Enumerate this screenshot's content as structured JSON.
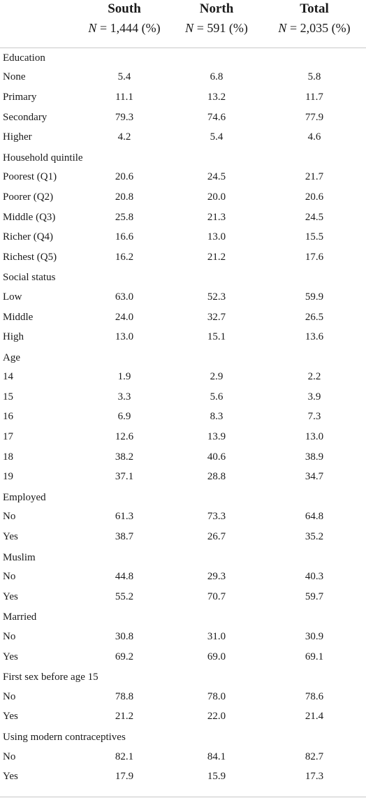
{
  "columns": [
    {
      "name": "South",
      "n": "N = 1,444 (%)"
    },
    {
      "name": "North",
      "n": "N = 591 (%)"
    },
    {
      "name": "Total",
      "n": "N = 2,035 (%)"
    }
  ],
  "rows": [
    {
      "label": "Education",
      "group": true
    },
    {
      "label": "None",
      "values": [
        "5.4",
        "6.8",
        "5.8"
      ]
    },
    {
      "label": "Primary",
      "values": [
        "11.1",
        "13.2",
        "11.7"
      ]
    },
    {
      "label": "Secondary",
      "values": [
        "79.3",
        "74.6",
        "77.9"
      ]
    },
    {
      "label": "Higher",
      "values": [
        "4.2",
        "5.4",
        "4.6"
      ]
    },
    {
      "label": "Household quintile",
      "group": true
    },
    {
      "label": "Poorest (Q1)",
      "values": [
        "20.6",
        "24.5",
        "21.7"
      ]
    },
    {
      "label": "Poorer (Q2)",
      "values": [
        "20.8",
        "20.0",
        "20.6"
      ]
    },
    {
      "label": "Middle (Q3)",
      "values": [
        "25.8",
        "21.3",
        "24.5"
      ]
    },
    {
      "label": "Richer (Q4)",
      "values": [
        "16.6",
        "13.0",
        "15.5"
      ]
    },
    {
      "label": "Richest (Q5)",
      "values": [
        "16.2",
        "21.2",
        "17.6"
      ]
    },
    {
      "label": "Social status",
      "group": true
    },
    {
      "label": "Low",
      "values": [
        "63.0",
        "52.3",
        "59.9"
      ]
    },
    {
      "label": "Middle",
      "values": [
        "24.0",
        "32.7",
        "26.5"
      ]
    },
    {
      "label": "High",
      "values": [
        "13.0",
        "15.1",
        "13.6"
      ]
    },
    {
      "label": "Age",
      "group": true
    },
    {
      "label": "14",
      "values": [
        "1.9",
        "2.9",
        "2.2"
      ]
    },
    {
      "label": "15",
      "values": [
        "3.3",
        "5.6",
        "3.9"
      ]
    },
    {
      "label": "16",
      "values": [
        "6.9",
        "8.3",
        "7.3"
      ]
    },
    {
      "label": "17",
      "values": [
        "12.6",
        "13.9",
        "13.0"
      ]
    },
    {
      "label": "18",
      "values": [
        "38.2",
        "40.6",
        "38.9"
      ]
    },
    {
      "label": "19",
      "values": [
        "37.1",
        "28.8",
        "34.7"
      ]
    },
    {
      "label": "Employed",
      "group": true
    },
    {
      "label": "No",
      "values": [
        "61.3",
        "73.3",
        "64.8"
      ]
    },
    {
      "label": "Yes",
      "values": [
        "38.7",
        "26.7",
        "35.2"
      ]
    },
    {
      "label": "Muslim",
      "group": true
    },
    {
      "label": "No",
      "values": [
        "44.8",
        "29.3",
        "40.3"
      ]
    },
    {
      "label": "Yes",
      "values": [
        "55.2",
        "70.7",
        "59.7"
      ]
    },
    {
      "label": "Married",
      "group": true
    },
    {
      "label": "No",
      "values": [
        "30.8",
        "31.0",
        "30.9"
      ]
    },
    {
      "label": "Yes",
      "values": [
        "69.2",
        "69.0",
        "69.1"
      ]
    },
    {
      "label": "First sex before age 15",
      "group": true
    },
    {
      "label": "No",
      "values": [
        "78.8",
        "78.0",
        "78.6"
      ]
    },
    {
      "label": "Yes",
      "values": [
        "21.2",
        "22.0",
        "21.4"
      ]
    },
    {
      "label": "Using modern contraceptives",
      "group": true
    },
    {
      "label": "No",
      "values": [
        "82.1",
        "84.1",
        "82.7"
      ]
    },
    {
      "label": "Yes",
      "values": [
        "17.9",
        "15.9",
        "17.3"
      ]
    }
  ]
}
